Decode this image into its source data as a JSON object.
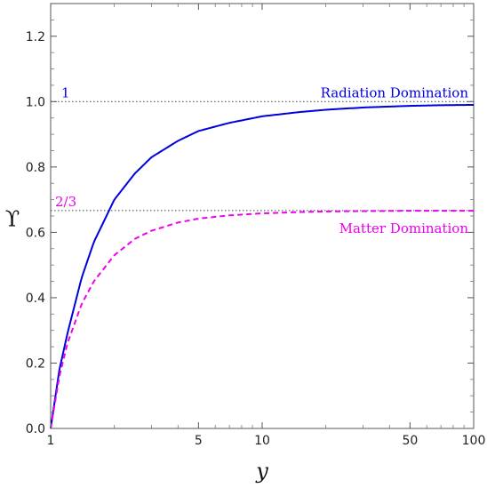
{
  "chart_data": {
    "type": "line",
    "title": "",
    "xlabel": "y",
    "ylabel": "ϒ",
    "x_scale": "log",
    "xlim": [
      1,
      100
    ],
    "ylim": [
      0,
      1.3
    ],
    "x_ticks": [
      1,
      5,
      10,
      50,
      100
    ],
    "x_tick_labels": [
      "1",
      "5",
      "10",
      "50",
      "100"
    ],
    "y_ticks": [
      0,
      0.2,
      0.4,
      0.6,
      0.8,
      1.0,
      1.2
    ],
    "y_tick_labels": [
      "0.0",
      "0.2",
      "0.4",
      "0.6",
      "0.8",
      "1.0",
      "1.2"
    ],
    "grid": false,
    "series": [
      {
        "name": "Radiation Domination",
        "color": "#0000dd",
        "style": "solid",
        "x": [
          1,
          1.1,
          1.2,
          1.4,
          1.6,
          2,
          2.5,
          3,
          4,
          5,
          7,
          10,
          15,
          20,
          30,
          50,
          70,
          100
        ],
        "y": [
          0,
          0.18,
          0.29,
          0.46,
          0.57,
          0.7,
          0.78,
          0.83,
          0.88,
          0.91,
          0.935,
          0.955,
          0.968,
          0.975,
          0.982,
          0.987,
          0.989,
          0.99
        ]
      },
      {
        "name": "Matter Domination",
        "color": "#ee00ee",
        "style": "dashed",
        "x": [
          1,
          1.1,
          1.2,
          1.4,
          1.6,
          2,
          2.5,
          3,
          4,
          5,
          7,
          10,
          15,
          20,
          30,
          50,
          70,
          100
        ],
        "y": [
          0,
          0.16,
          0.26,
          0.38,
          0.45,
          0.53,
          0.58,
          0.605,
          0.63,
          0.642,
          0.652,
          0.658,
          0.662,
          0.664,
          0.665,
          0.666,
          0.666,
          0.666
        ]
      }
    ],
    "reference_lines": [
      {
        "y": 1.0,
        "label": "1",
        "color": "#0000dd"
      },
      {
        "y": 0.6667,
        "label": "2/3",
        "color": "#ee00ee"
      }
    ]
  }
}
